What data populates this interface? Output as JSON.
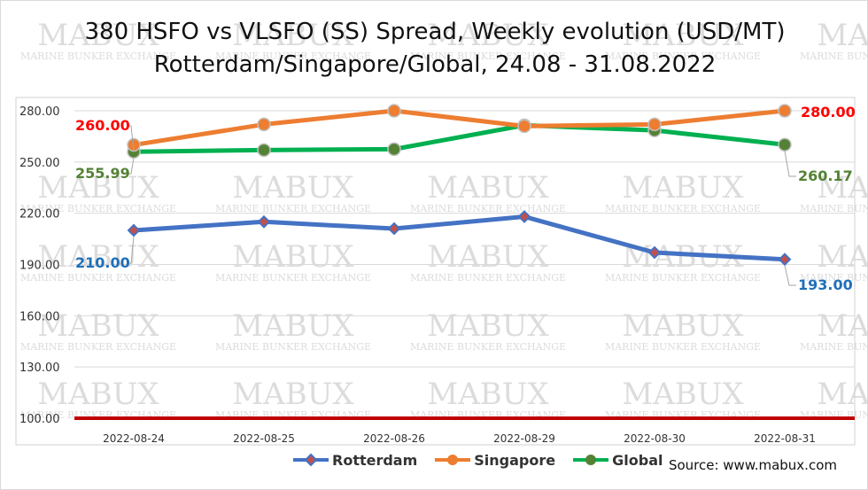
{
  "chart_data": {
    "type": "line",
    "title": "380 HSFO vs VLSFO (SS) Spread, Weekly evolution (USD/MT)",
    "subtitle": "Rotterdam/Singapore/Global, 24.08 - 31.08.2022",
    "categories": [
      "2022-08-24",
      "2022-08-25",
      "2022-08-26",
      "2022-08-29",
      "2022-08-30",
      "2022-08-31"
    ],
    "ylim": [
      100,
      280
    ],
    "yticks": [
      "100.00",
      "130.00",
      "160.00",
      "190.00",
      "220.00",
      "250.00",
      "280.00"
    ],
    "grid": true,
    "legend_position": "bottom",
    "series": [
      {
        "name": "Rotterdam",
        "color": "#4472C4",
        "marker": "diamond",
        "marker_fill": "#C0504D",
        "values": [
          210,
          215,
          211,
          218,
          197,
          193
        ],
        "first_label": "210.00",
        "last_label": "193.00",
        "label_color": "#1F6FB8"
      },
      {
        "name": "Singapore",
        "color": "#ED7D31",
        "marker": "circle",
        "marker_fill": "#ED7D31",
        "values": [
          260,
          272,
          280,
          271,
          272,
          280
        ],
        "first_label": "260.00",
        "last_label": "280.00",
        "label_color": "#FF0000"
      },
      {
        "name": "Global",
        "color": "#00B050",
        "marker": "circle",
        "marker_fill": "#548235",
        "values": [
          255.99,
          257,
          257.5,
          271.5,
          268.5,
          260.17
        ],
        "first_label": "255.99",
        "last_label": "260.17",
        "label_color": "#548235"
      }
    ],
    "reference_line": {
      "value": 100,
      "color": "#C00000"
    }
  },
  "watermark": {
    "main": "MABUX",
    "sub": "MARINE BUNKER EXCHANGE"
  },
  "source": "Source: www.mabux.com"
}
